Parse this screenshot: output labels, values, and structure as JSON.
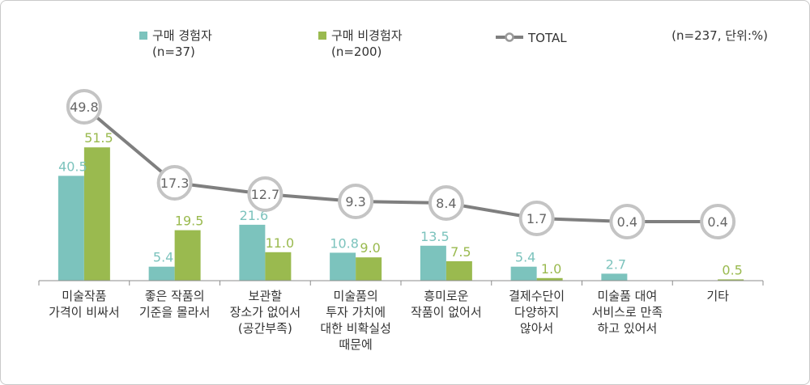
{
  "chart_data": {
    "type": "bar",
    "unit_note": "(n=237, 단위:%)",
    "categories": [
      [
        "미술작품",
        "가격이 비싸서"
      ],
      [
        "좋은 작품의",
        "기준을 몰라서"
      ],
      [
        "보관할",
        "장소가 없어서",
        "(공간부족)"
      ],
      [
        "미술품의",
        "투자 가치에",
        "대한 비확실성",
        "때문에"
      ],
      [
        "흥미로운",
        "작품이 없어서"
      ],
      [
        "결제수단이",
        "다양하지",
        "않아서"
      ],
      [
        "미술품 대여",
        "서비스로 만족",
        "하고 있어서"
      ],
      [
        "기타"
      ]
    ],
    "series": [
      {
        "name": "구매 경험자",
        "name_n": "(n=37)",
        "type": "bar",
        "color": "#7cc3bd",
        "values": [
          40.5,
          5.4,
          21.6,
          10.8,
          13.5,
          5.4,
          2.7,
          null
        ]
      },
      {
        "name": "구매 비경험자",
        "name_n": "(n=200)",
        "type": "bar",
        "color": "#9aba4f",
        "values": [
          51.5,
          19.5,
          11.0,
          9.0,
          7.5,
          1.0,
          null,
          0.5
        ]
      },
      {
        "name": "TOTAL",
        "type": "line",
        "color": "#7f7f7f",
        "values": [
          49.8,
          17.3,
          12.7,
          9.3,
          8.4,
          1.7,
          0.4,
          0.4
        ]
      }
    ],
    "bar_labels": {
      "s0": [
        "40.5",
        "5.4",
        "21.6",
        "10.8",
        "13.5",
        "5.4",
        "2.7",
        ""
      ],
      "s1": [
        "51.5",
        "19.5",
        "11.0",
        "9.0",
        "7.5",
        "1.0",
        "",
        "0.5"
      ],
      "total": [
        "49.8",
        "17.3",
        "12.7",
        "9.3",
        "8.4",
        "1.7",
        "0.4",
        "0.4"
      ]
    },
    "legend_position": "top",
    "grid": false
  }
}
